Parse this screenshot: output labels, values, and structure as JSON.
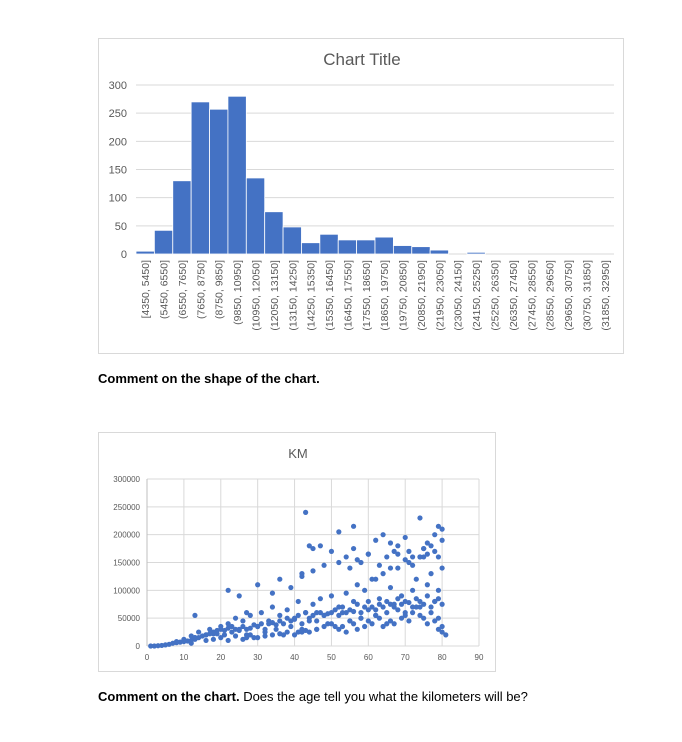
{
  "chart_data": [
    {
      "type": "bar",
      "title": "Chart Title",
      "xlabel": "",
      "ylabel": "",
      "ylim": [
        0,
        300
      ],
      "yticks": [
        0,
        50,
        100,
        150,
        200,
        250,
        300
      ],
      "grid": true,
      "color": "#4472c4",
      "categories": [
        "[4350, 5450]",
        "(5450, 6550]",
        "(6550, 7650]",
        "(7650, 8750]",
        "(8750, 9850]",
        "(9850, 10950]",
        "(10950, 12050]",
        "(12050, 13150]",
        "(13150, 14250]",
        "(14250, 15350]",
        "(15350, 16450]",
        "(16450, 17550]",
        "(17550, 18650]",
        "(18650, 19750]",
        "(19750, 20850]",
        "(20850, 21950]",
        "(21950, 23050]",
        "(23050, 24150]",
        "(24150, 25250]",
        "(25250, 26350]",
        "(26350, 27450]",
        "(27450, 28550]",
        "(28550, 29650]",
        "(29650, 30750]",
        "(30750, 31850]",
        "(31850, 32950]"
      ],
      "values": [
        5,
        42,
        130,
        270,
        257,
        280,
        135,
        75,
        48,
        20,
        35,
        25,
        25,
        30,
        15,
        13,
        7,
        0,
        3,
        0,
        0,
        0,
        0,
        0,
        0,
        0
      ]
    },
    {
      "type": "scatter",
      "title": "KM",
      "xlabel": "",
      "ylabel": "",
      "xlim": [
        0,
        90
      ],
      "ylim": [
        0,
        300000
      ],
      "xticks": [
        0,
        10,
        20,
        30,
        40,
        50,
        60,
        70,
        80,
        90
      ],
      "yticks": [
        0,
        50000,
        100000,
        150000,
        200000,
        250000,
        300000
      ],
      "grid": true,
      "color": "#4472c4",
      "x": [
        1,
        2,
        3,
        4,
        5,
        6,
        7,
        8,
        9,
        10,
        11,
        12,
        13,
        14,
        15,
        16,
        17,
        18,
        19,
        20,
        21,
        22,
        23,
        24,
        25,
        26,
        27,
        28,
        29,
        30,
        31,
        32,
        33,
        34,
        35,
        36,
        37,
        38,
        39,
        40,
        41,
        42,
        43,
        44,
        45,
        46,
        47,
        48,
        49,
        50,
        51,
        52,
        53,
        54,
        55,
        56,
        57,
        58,
        59,
        60,
        61,
        62,
        63,
        64,
        65,
        66,
        67,
        68,
        69,
        70,
        71,
        72,
        73,
        74,
        75,
        76,
        77,
        78,
        79,
        80,
        8,
        10,
        12,
        13,
        14,
        16,
        17,
        18,
        19,
        20,
        21,
        22,
        23,
        24,
        25,
        26,
        27,
        28,
        29,
        30,
        31,
        32,
        33,
        34,
        35,
        36,
        37,
        38,
        39,
        40,
        41,
        42,
        43,
        44,
        45,
        46,
        47,
        48,
        49,
        50,
        51,
        52,
        53,
        54,
        55,
        56,
        57,
        58,
        59,
        60,
        61,
        62,
        63,
        64,
        65,
        66,
        67,
        68,
        69,
        70,
        71,
        72,
        73,
        74,
        75,
        76,
        77,
        78,
        79,
        80,
        12,
        13,
        16,
        18,
        20,
        22,
        24,
        26,
        27,
        28,
        30,
        32,
        34,
        36,
        38,
        40,
        41,
        42,
        43,
        44,
        46,
        48,
        50,
        52,
        53,
        54,
        55,
        56,
        57,
        58,
        59,
        60,
        61,
        62,
        63,
        64,
        65,
        66,
        67,
        68,
        69,
        70,
        71,
        72,
        73,
        74,
        75,
        76,
        77,
        78,
        79,
        80,
        13,
        22,
        25,
        27,
        30,
        34,
        36,
        39,
        42,
        44,
        45,
        47,
        50,
        52,
        54,
        56,
        58,
        60,
        62,
        64,
        66,
        67,
        68,
        70,
        72,
        74,
        75,
        76,
        78,
        79,
        80,
        42,
        45,
        46,
        48,
        52,
        55,
        57,
        60,
        62,
        63,
        65,
        66,
        68,
        70,
        71,
        72,
        74,
        75,
        76,
        77,
        78,
        79,
        80,
        43,
        56,
        74,
        79,
        80,
        81
      ],
      "y": [
        0,
        0,
        500,
        1000,
        2000,
        3000,
        5000,
        6000,
        7000,
        8000,
        9000,
        10000,
        12000,
        15000,
        18000,
        20000,
        22000,
        25000,
        22000,
        30000,
        28000,
        32000,
        35000,
        30000,
        28000,
        35000,
        30000,
        32000,
        38000,
        35000,
        40000,
        30000,
        45000,
        42000,
        38000,
        45000,
        40000,
        50000,
        45000,
        48000,
        55000,
        40000,
        60000,
        50000,
        55000,
        45000,
        60000,
        55000,
        58000,
        60000,
        65000,
        55000,
        70000,
        60000,
        65000,
        62000,
        75000,
        60000,
        70000,
        80000,
        70000,
        65000,
        75000,
        70000,
        80000,
        75000,
        70000,
        85000,
        75000,
        80000,
        78000,
        70000,
        85000,
        80000,
        75000,
        90000,
        70000,
        80000,
        85000,
        75000,
        8000,
        12000,
        18000,
        15000,
        25000,
        20000,
        30000,
        22000,
        28000,
        35000,
        20000,
        40000,
        25000,
        50000,
        30000,
        45000,
        20000,
        55000,
        15000,
        35000,
        60000,
        25000,
        40000,
        70000,
        30000,
        55000,
        20000,
        65000,
        35000,
        50000,
        80000,
        25000,
        60000,
        45000,
        75000,
        30000,
        85000,
        55000,
        40000,
        90000,
        35000,
        70000,
        60000,
        95000,
        45000,
        80000,
        110000,
        50000,
        100000,
        65000,
        120000,
        55000,
        85000,
        130000,
        40000,
        105000,
        75000,
        140000,
        90000,
        60000,
        150000,
        100000,
        120000,
        70000,
        160000,
        110000,
        130000,
        80000,
        100000,
        140000,
        5000,
        15000,
        10000,
        12000,
        15000,
        10000,
        18000,
        12000,
        15000,
        20000,
        15000,
        18000,
        20000,
        22000,
        25000,
        20000,
        25000,
        30000,
        28000,
        25000,
        30000,
        35000,
        40000,
        30000,
        35000,
        25000,
        45000,
        40000,
        30000,
        50000,
        35000,
        45000,
        40000,
        55000,
        50000,
        35000,
        60000,
        45000,
        40000,
        65000,
        50000,
        55000,
        45000,
        60000,
        70000,
        55000,
        50000,
        40000,
        60000,
        45000,
        50000,
        35000,
        55000,
        100000,
        90000,
        60000,
        110000,
        95000,
        120000,
        105000,
        130000,
        180000,
        175000,
        180000,
        170000,
        205000,
        160000,
        175000,
        150000,
        165000,
        190000,
        200000,
        185000,
        170000,
        180000,
        195000,
        160000,
        230000,
        175000,
        185000,
        200000,
        215000,
        210000,
        125000,
        135000,
        60000,
        145000,
        150000,
        140000,
        155000,
        165000,
        120000,
        145000,
        160000,
        140000,
        165000,
        155000,
        170000,
        145000,
        160000,
        175000,
        165000,
        180000,
        170000,
        160000,
        190000,
        240000,
        215000,
        160000,
        30000,
        25000,
        20000
      ]
    }
  ],
  "comments": [
    {
      "bold": "Comment on the shape of the chart.",
      "rest": ""
    },
    {
      "bold": "Comment on the chart.",
      "rest": "  Does the age tell you what the kilometers will be?"
    }
  ]
}
